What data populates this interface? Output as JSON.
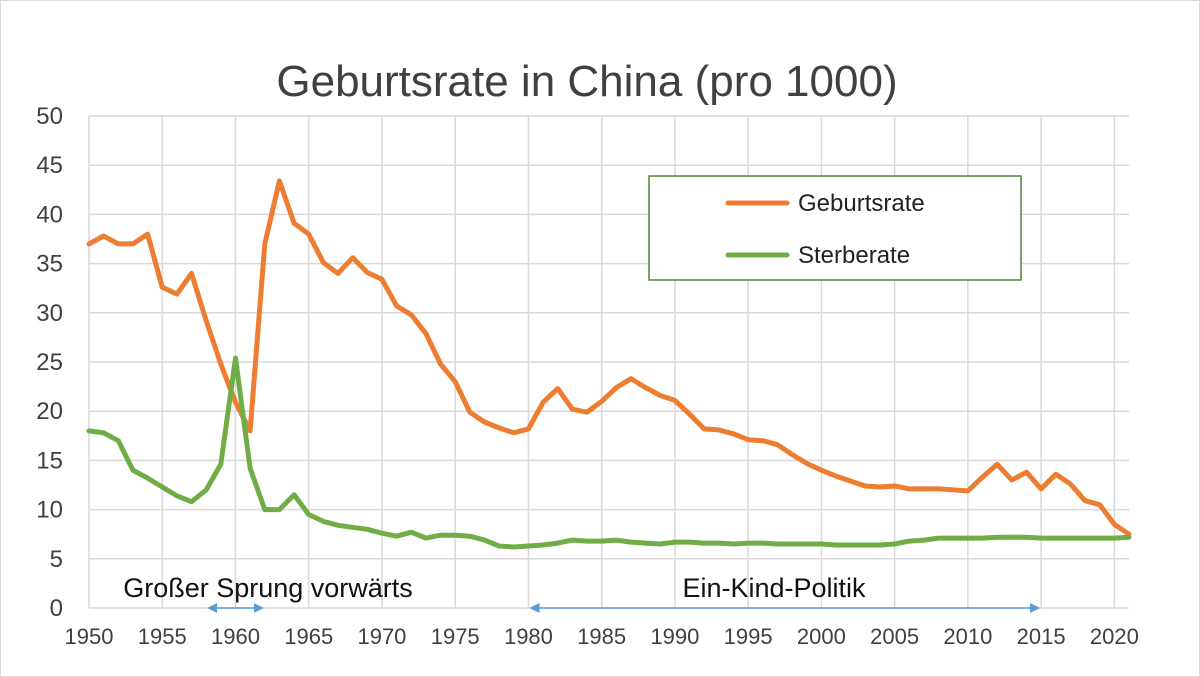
{
  "chart_data": {
    "type": "line",
    "title": "Geburtsrate in China (pro 1000)",
    "xlabel": "",
    "ylabel": "",
    "xlim": [
      1950,
      2021
    ],
    "ylim": [
      0,
      50
    ],
    "x_ticks": [
      1950,
      1955,
      1960,
      1965,
      1970,
      1975,
      1980,
      1985,
      1990,
      1995,
      2000,
      2005,
      2010,
      2015,
      2020
    ],
    "y_ticks": [
      0,
      5,
      10,
      15,
      20,
      25,
      30,
      35,
      40,
      45,
      50
    ],
    "grid": true,
    "legend_position": "top-right",
    "x": [
      1950,
      1951,
      1952,
      1953,
      1954,
      1955,
      1956,
      1957,
      1958,
      1959,
      1960,
      1961,
      1962,
      1963,
      1964,
      1965,
      1966,
      1967,
      1968,
      1969,
      1970,
      1971,
      1972,
      1973,
      1974,
      1975,
      1976,
      1977,
      1978,
      1979,
      1980,
      1981,
      1982,
      1983,
      1984,
      1985,
      1986,
      1987,
      1988,
      1989,
      1990,
      1991,
      1992,
      1993,
      1994,
      1995,
      1996,
      1997,
      1998,
      1999,
      2000,
      2001,
      2002,
      2003,
      2004,
      2005,
      2006,
      2007,
      2008,
      2009,
      2010,
      2011,
      2012,
      2013,
      2014,
      2015,
      2016,
      2017,
      2018,
      2019,
      2020,
      2021
    ],
    "series": [
      {
        "name": "Geburtsrate",
        "color": "#ED7D31",
        "values": [
          37.0,
          37.8,
          37.0,
          37.0,
          38.0,
          32.6,
          31.9,
          34.0,
          29.2,
          24.8,
          20.9,
          18.0,
          37.0,
          43.4,
          39.1,
          38.0,
          35.1,
          34.0,
          35.6,
          34.1,
          33.4,
          30.7,
          29.8,
          27.9,
          24.8,
          23.0,
          19.9,
          18.9,
          18.3,
          17.8,
          18.2,
          20.9,
          22.3,
          20.2,
          19.9,
          21.0,
          22.4,
          23.3,
          22.4,
          21.6,
          21.1,
          19.7,
          18.2,
          18.1,
          17.7,
          17.1,
          17.0,
          16.6,
          15.6,
          14.7,
          14.0,
          13.4,
          12.9,
          12.4,
          12.3,
          12.4,
          12.1,
          12.1,
          12.1,
          12.0,
          11.9,
          13.3,
          14.6,
          13.0,
          13.8,
          12.1,
          13.6,
          12.6,
          10.9,
          10.5,
          8.5,
          7.5
        ]
      },
      {
        "name": "Sterberate",
        "color": "#70AD47",
        "values": [
          18.0,
          17.8,
          17.0,
          14.0,
          13.2,
          12.3,
          11.4,
          10.8,
          12.0,
          14.6,
          25.4,
          14.2,
          10.0,
          10.0,
          11.5,
          9.5,
          8.8,
          8.4,
          8.2,
          8.0,
          7.6,
          7.3,
          7.7,
          7.1,
          7.4,
          7.4,
          7.3,
          6.9,
          6.3,
          6.2,
          6.3,
          6.4,
          6.6,
          6.9,
          6.8,
          6.8,
          6.9,
          6.7,
          6.6,
          6.5,
          6.7,
          6.7,
          6.6,
          6.6,
          6.5,
          6.6,
          6.6,
          6.5,
          6.5,
          6.5,
          6.5,
          6.4,
          6.4,
          6.4,
          6.4,
          6.5,
          6.8,
          6.9,
          7.1,
          7.1,
          7.1,
          7.1,
          7.2,
          7.2,
          7.2,
          7.1,
          7.1,
          7.1,
          7.1,
          7.1,
          7.1,
          7.2
        ]
      }
    ],
    "annotations": [
      {
        "text": "Großer Sprung vorwärts",
        "x_start": 1958,
        "x_end": 1962
      },
      {
        "text": "Ein-Kind-Politik",
        "x_start": 1980,
        "x_end": 2015
      }
    ],
    "arrow_color": "#5B9BD5",
    "legend_border_color": "#548235"
  }
}
